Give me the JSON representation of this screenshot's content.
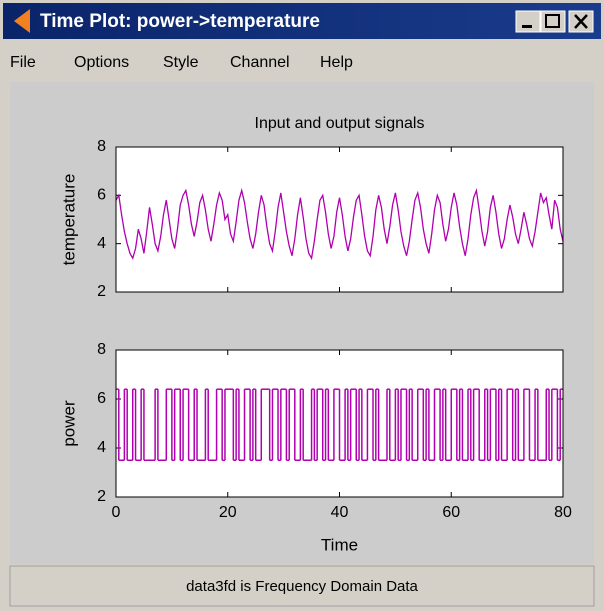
{
  "window": {
    "title": "Time Plot: power->temperature"
  },
  "menu": [
    "File",
    "Options",
    "Style",
    "Channel",
    "Help"
  ],
  "chart_data": [
    {
      "type": "line",
      "title": "Input and output signals",
      "ylabel": "temperature",
      "color": "#b000b0",
      "xlim": [
        0,
        80
      ],
      "ylim": [
        2,
        8
      ],
      "yticks": [
        2,
        4,
        6,
        8
      ],
      "x": [
        0,
        0.5,
        1,
        1.5,
        2,
        2.5,
        3,
        3.5,
        4,
        4.5,
        5,
        5.5,
        6,
        6.5,
        7,
        7.5,
        8,
        8.5,
        9,
        9.5,
        10,
        10.5,
        11,
        11.5,
        12,
        12.5,
        13,
        13.5,
        14,
        14.5,
        15,
        15.5,
        16,
        16.5,
        17,
        17.5,
        18,
        18.5,
        19,
        19.5,
        20,
        20.5,
        21,
        21.5,
        22,
        22.5,
        23,
        23.5,
        24,
        24.5,
        25,
        25.5,
        26,
        26.5,
        27,
        27.5,
        28,
        28.5,
        29,
        29.5,
        30,
        30.5,
        31,
        31.5,
        32,
        32.5,
        33,
        33.5,
        34,
        34.5,
        35,
        35.5,
        36,
        36.5,
        37,
        37.5,
        38,
        38.5,
        39,
        39.5,
        40,
        40.5,
        41,
        41.5,
        42,
        42.5,
        43,
        43.5,
        44,
        44.5,
        45,
        45.5,
        46,
        46.5,
        47,
        47.5,
        48,
        48.5,
        49,
        49.5,
        50,
        50.5,
        51,
        51.5,
        52,
        52.5,
        53,
        53.5,
        54,
        54.5,
        55,
        55.5,
        56,
        56.5,
        57,
        57.5,
        58,
        58.5,
        59,
        59.5,
        60,
        60.5,
        61,
        61.5,
        62,
        62.5,
        63,
        63.5,
        64,
        64.5,
        65,
        65.5,
        66,
        66.5,
        67,
        67.5,
        68,
        68.5,
        69,
        69.5,
        70,
        70.5,
        71,
        71.5,
        72,
        72.5,
        73,
        73.5,
        74,
        74.5,
        75,
        75.5,
        76,
        76.5,
        77,
        77.5,
        78,
        78.5,
        79,
        79.5,
        80
      ],
      "values": [
        5.8,
        6.0,
        5.2,
        4.5,
        4.0,
        3.6,
        3.4,
        3.8,
        4.6,
        4.2,
        3.6,
        4.5,
        5.5,
        4.8,
        4.0,
        3.7,
        4.3,
        5.2,
        5.8,
        5.0,
        4.2,
        3.8,
        4.6,
        5.6,
        6.0,
        6.2,
        5.6,
        4.8,
        4.3,
        4.9,
        5.7,
        6.0,
        5.4,
        4.6,
        4.1,
        4.8,
        5.6,
        6.1,
        5.8,
        5.0,
        5.2,
        4.4,
        4.1,
        4.9,
        5.8,
        6.2,
        5.7,
        4.9,
        4.2,
        3.8,
        4.4,
        5.3,
        6.0,
        5.6,
        4.7,
        4.0,
        3.7,
        4.5,
        5.5,
        6.1,
        5.3,
        4.5,
        3.9,
        3.5,
        4.2,
        5.2,
        5.9,
        5.1,
        4.2,
        3.6,
        3.4,
        4.1,
        5.0,
        5.8,
        6.0,
        5.3,
        4.4,
        3.8,
        4.3,
        5.3,
        5.9,
        5.2,
        4.3,
        3.7,
        4.2,
        5.1,
        5.8,
        6.0,
        5.2,
        4.3,
        3.7,
        3.5,
        4.3,
        5.4,
        6.0,
        5.5,
        4.6,
        4.0,
        4.7,
        5.6,
        6.1,
        5.4,
        4.5,
        3.9,
        3.5,
        4.1,
        5.0,
        5.8,
        6.1,
        5.5,
        4.6,
        4.0,
        3.6,
        4.4,
        5.4,
        6.0,
        5.7,
        4.8,
        4.1,
        4.6,
        5.5,
        6.1,
        5.6,
        4.7,
        4.0,
        3.5,
        4.2,
        5.2,
        5.9,
        6.2,
        5.4,
        4.5,
        3.9,
        4.5,
        5.5,
        6.0,
        5.3,
        4.4,
        3.8,
        4.2,
        5.0,
        5.6,
        5.1,
        4.4,
        4.0,
        4.6,
        5.3,
        4.8,
        4.2,
        3.9,
        4.5,
        5.3,
        6.1,
        5.7,
        5.9,
        5.2,
        4.6,
        5.8,
        5.5,
        4.6,
        4.1
      ]
    },
    {
      "type": "step",
      "ylabel": "power",
      "xlabel": "Time",
      "color": "#b000b0",
      "xlim": [
        0,
        80
      ],
      "ylim": [
        2,
        8
      ],
      "yticks": [
        2,
        4,
        6,
        8
      ],
      "xticks": [
        0,
        20,
        40,
        60,
        80
      ],
      "x": [
        0,
        0.5,
        1.5,
        2,
        3,
        3.5,
        4.5,
        5,
        7,
        7.5,
        9,
        10,
        10.5,
        11.5,
        12,
        13,
        14,
        14.5,
        16,
        16.5,
        18,
        19,
        19.5,
        21,
        21.5,
        22,
        23,
        24,
        24.5,
        25,
        26,
        27.5,
        28,
        29,
        29.5,
        30.5,
        31,
        32,
        33,
        33.5,
        35,
        35.5,
        36,
        37,
        37.5,
        38,
        39,
        40,
        41,
        41.5,
        42,
        43,
        43.5,
        44,
        45,
        46,
        46.5,
        47,
        48.5,
        49,
        50,
        50.5,
        51,
        52,
        52.5,
        53,
        54,
        55,
        55.5,
        56,
        57,
        58,
        58.5,
        59,
        60,
        61,
        61.5,
        62,
        63,
        63.5,
        64,
        65,
        66,
        66.5,
        67,
        68,
        68.5,
        69,
        70,
        71,
        71.5,
        72,
        73,
        74,
        75,
        75.5,
        77,
        77.5,
        78,
        79,
        79.5
      ],
      "values": [
        6.4,
        3.5,
        6.4,
        3.5,
        6.4,
        3.5,
        6.4,
        3.5,
        6.4,
        3.5,
        6.4,
        3.5,
        6.4,
        3.5,
        6.4,
        3.5,
        6.4,
        3.5,
        6.4,
        3.5,
        6.4,
        3.5,
        6.4,
        3.5,
        6.4,
        3.5,
        6.4,
        3.5,
        6.4,
        3.5,
        6.4,
        3.5,
        6.4,
        3.5,
        6.4,
        3.5,
        6.4,
        3.5,
        6.4,
        3.5,
        6.4,
        3.5,
        6.4,
        3.5,
        6.4,
        3.5,
        6.4,
        3.5,
        6.4,
        3.5,
        6.4,
        3.5,
        6.4,
        3.5,
        6.4,
        3.5,
        6.4,
        3.5,
        6.4,
        3.5,
        6.4,
        3.5,
        6.4,
        3.5,
        6.4,
        3.5,
        6.4,
        3.5,
        6.4,
        3.5,
        6.4,
        3.5,
        6.4,
        3.5,
        6.4,
        3.5,
        6.4,
        3.5,
        6.4,
        3.5,
        6.4,
        3.5,
        6.4,
        3.5,
        6.4,
        3.5,
        6.4,
        3.5,
        6.4,
        3.5,
        6.4,
        3.5,
        6.4,
        3.5,
        6.4,
        3.5,
        6.4,
        3.5,
        6.4,
        3.5,
        6.4
      ]
    }
  ],
  "status": "data3fd is Frequency Domain Data"
}
